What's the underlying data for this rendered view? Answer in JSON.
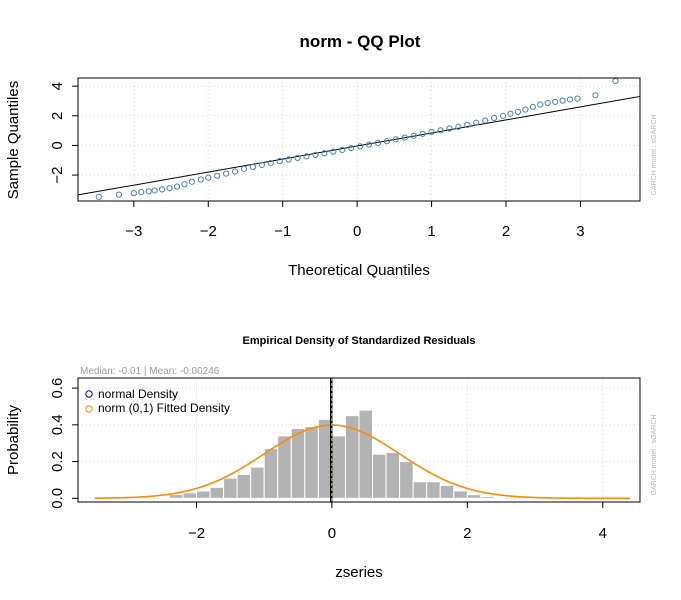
{
  "chart_data": [
    {
      "type": "scatter",
      "title": "norm - QQ Plot",
      "xlabel": "Theoretical Quantiles",
      "ylabel": "Sample Quantiles",
      "xlim": [
        -3.75,
        3.8
      ],
      "ylim": [
        -3.75,
        4.55
      ],
      "x_ticks": [
        -3,
        -2,
        -1,
        0,
        1,
        2,
        3
      ],
      "y_ticks": [
        -2,
        0,
        2,
        4
      ],
      "grid": true,
      "side_note": "GARCH model : sGARCH",
      "colors": {
        "points": "#4682b4",
        "line": "#000000",
        "grid": "#d3d3d3"
      },
      "reference_line": {
        "slope": 0.88,
        "intercept": -0.04
      },
      "points": [
        {
          "x": -3.47,
          "y": -3.47
        },
        {
          "x": -3.2,
          "y": -3.32
        },
        {
          "x": -3.0,
          "y": -3.22
        },
        {
          "x": -2.9,
          "y": -3.15
        },
        {
          "x": -2.8,
          "y": -3.1
        },
        {
          "x": -2.72,
          "y": -3.04
        },
        {
          "x": -2.62,
          "y": -2.97
        },
        {
          "x": -2.52,
          "y": -2.89
        },
        {
          "x": -2.42,
          "y": -2.78
        },
        {
          "x": -2.32,
          "y": -2.62
        },
        {
          "x": -2.22,
          "y": -2.45
        },
        {
          "x": -2.1,
          "y": -2.3
        },
        {
          "x": -2.0,
          "y": -2.18
        },
        {
          "x": -1.88,
          "y": -2.05
        },
        {
          "x": -1.76,
          "y": -1.9
        },
        {
          "x": -1.64,
          "y": -1.76
        },
        {
          "x": -1.52,
          "y": -1.58
        },
        {
          "x": -1.4,
          "y": -1.45
        },
        {
          "x": -1.28,
          "y": -1.32
        },
        {
          "x": -1.16,
          "y": -1.18
        },
        {
          "x": -1.04,
          "y": -1.06
        },
        {
          "x": -0.92,
          "y": -0.95
        },
        {
          "x": -0.8,
          "y": -0.84
        },
        {
          "x": -0.68,
          "y": -0.74
        },
        {
          "x": -0.56,
          "y": -0.64
        },
        {
          "x": -0.44,
          "y": -0.53
        },
        {
          "x": -0.32,
          "y": -0.42
        },
        {
          "x": -0.2,
          "y": -0.3
        },
        {
          "x": -0.08,
          "y": -0.18
        },
        {
          "x": 0.04,
          "y": -0.06
        },
        {
          "x": 0.16,
          "y": 0.06
        },
        {
          "x": 0.28,
          "y": 0.17
        },
        {
          "x": 0.4,
          "y": 0.29
        },
        {
          "x": 0.52,
          "y": 0.41
        },
        {
          "x": 0.64,
          "y": 0.53
        },
        {
          "x": 0.76,
          "y": 0.65
        },
        {
          "x": 0.88,
          "y": 0.78
        },
        {
          "x": 1.0,
          "y": 0.9
        },
        {
          "x": 1.12,
          "y": 1.02
        },
        {
          "x": 1.24,
          "y": 1.14
        },
        {
          "x": 1.36,
          "y": 1.26
        },
        {
          "x": 1.48,
          "y": 1.38
        },
        {
          "x": 1.6,
          "y": 1.53
        },
        {
          "x": 1.72,
          "y": 1.68
        },
        {
          "x": 1.84,
          "y": 1.85
        },
        {
          "x": 1.96,
          "y": 2.0
        },
        {
          "x": 2.06,
          "y": 2.14
        },
        {
          "x": 2.16,
          "y": 2.26
        },
        {
          "x": 2.26,
          "y": 2.42
        },
        {
          "x": 2.36,
          "y": 2.6
        },
        {
          "x": 2.46,
          "y": 2.76
        },
        {
          "x": 2.56,
          "y": 2.86
        },
        {
          "x": 2.66,
          "y": 2.94
        },
        {
          "x": 2.76,
          "y": 3.02
        },
        {
          "x": 2.86,
          "y": 3.1
        },
        {
          "x": 2.96,
          "y": 3.16
        },
        {
          "x": 3.2,
          "y": 3.38
        },
        {
          "x": 3.47,
          "y": 4.35
        }
      ]
    },
    {
      "type": "bar",
      "title": "Empirical Density of Standardized Residuals",
      "subtitle": "Median:  -0.01 | Mean:  -0.00246",
      "xlabel": "zseries",
      "ylabel": "Probability",
      "xlim": [
        -3.75,
        4.55
      ],
      "ylim": [
        -0.02,
        0.655
      ],
      "x_ticks": [
        -2,
        0,
        2,
        4
      ],
      "y_ticks": [
        "0.0",
        "0.2",
        "0.4",
        "0.6"
      ],
      "grid": true,
      "legend": {
        "placement": "top-left",
        "entries": [
          {
            "label": "normal Density",
            "color": "#0000cd"
          },
          {
            "label": "norm (0,1) Fitted Density",
            "color": "#ff8c00"
          }
        ]
      },
      "side_note": "GARCH model : sGARCH",
      "colors": {
        "bars": "#b3b3b3",
        "fitted_density": "#ff8c00",
        "normal_density": "#0000cd",
        "median_line": "#000000",
        "mean_line": "#9acd32",
        "grid": "#d3d3d3"
      },
      "bin_width": 0.2,
      "bins": [
        {
          "x0": -2.4,
          "value": 0.02
        },
        {
          "x0": -2.2,
          "value": 0.03
        },
        {
          "x0": -2.0,
          "value": 0.04
        },
        {
          "x0": -1.8,
          "value": 0.06
        },
        {
          "x0": -1.6,
          "value": 0.11
        },
        {
          "x0": -1.4,
          "value": 0.13
        },
        {
          "x0": -1.2,
          "value": 0.17
        },
        {
          "x0": -1.0,
          "value": 0.27
        },
        {
          "x0": -0.8,
          "value": 0.34
        },
        {
          "x0": -0.6,
          "value": 0.38
        },
        {
          "x0": -0.4,
          "value": 0.39
        },
        {
          "x0": -0.2,
          "value": 0.43
        },
        {
          "x0": 0.0,
          "value": 0.34
        },
        {
          "x0": 0.2,
          "value": 0.45
        },
        {
          "x0": 0.4,
          "value": 0.48
        },
        {
          "x0": 0.6,
          "value": 0.24
        },
        {
          "x0": 0.8,
          "value": 0.25
        },
        {
          "x0": 1.0,
          "value": 0.2
        },
        {
          "x0": 1.2,
          "value": 0.09
        },
        {
          "x0": 1.4,
          "value": 0.09
        },
        {
          "x0": 1.6,
          "value": 0.07
        },
        {
          "x0": 1.8,
          "value": 0.04
        },
        {
          "x0": 2.0,
          "value": 0.02
        },
        {
          "x0": 2.2,
          "value": 0.01
        },
        {
          "x0": 2.8,
          "value": 0.01
        }
      ],
      "density": {
        "mean": 0,
        "sd": 1,
        "x_from": -3.5,
        "x_to": 4.4
      },
      "median_x": -0.01,
      "mean_x": -0.00246
    }
  ]
}
